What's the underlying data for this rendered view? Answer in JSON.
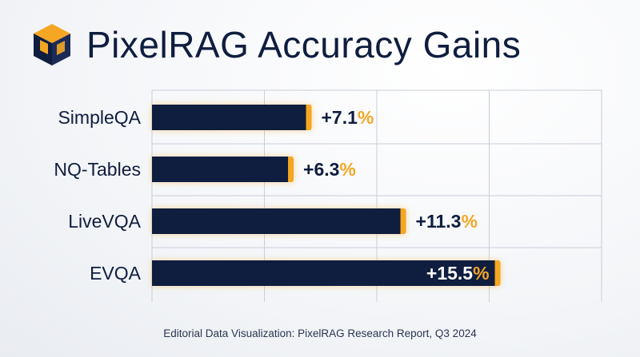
{
  "title": "PixelRAG Accuracy Gains",
  "caption": "Editorial Data Visualization: PixelRAG Research Report, Q3 2024",
  "colors": {
    "bar": "#0f1d3f",
    "accent": "#f5a623",
    "text": "#0f1d3f",
    "grid": "#c9ced8"
  },
  "chart_data": {
    "type": "bar",
    "orientation": "horizontal",
    "categories": [
      "SimpleQA",
      "NQ-Tables",
      "LiveVQA",
      "EVQA"
    ],
    "values": [
      7.1,
      6.3,
      11.3,
      15.5
    ],
    "value_labels": [
      "+7.1%",
      "+6.3%",
      "+11.3%",
      "+15.5%"
    ],
    "unit": "%",
    "xlim": [
      0,
      20
    ],
    "grid": true
  }
}
